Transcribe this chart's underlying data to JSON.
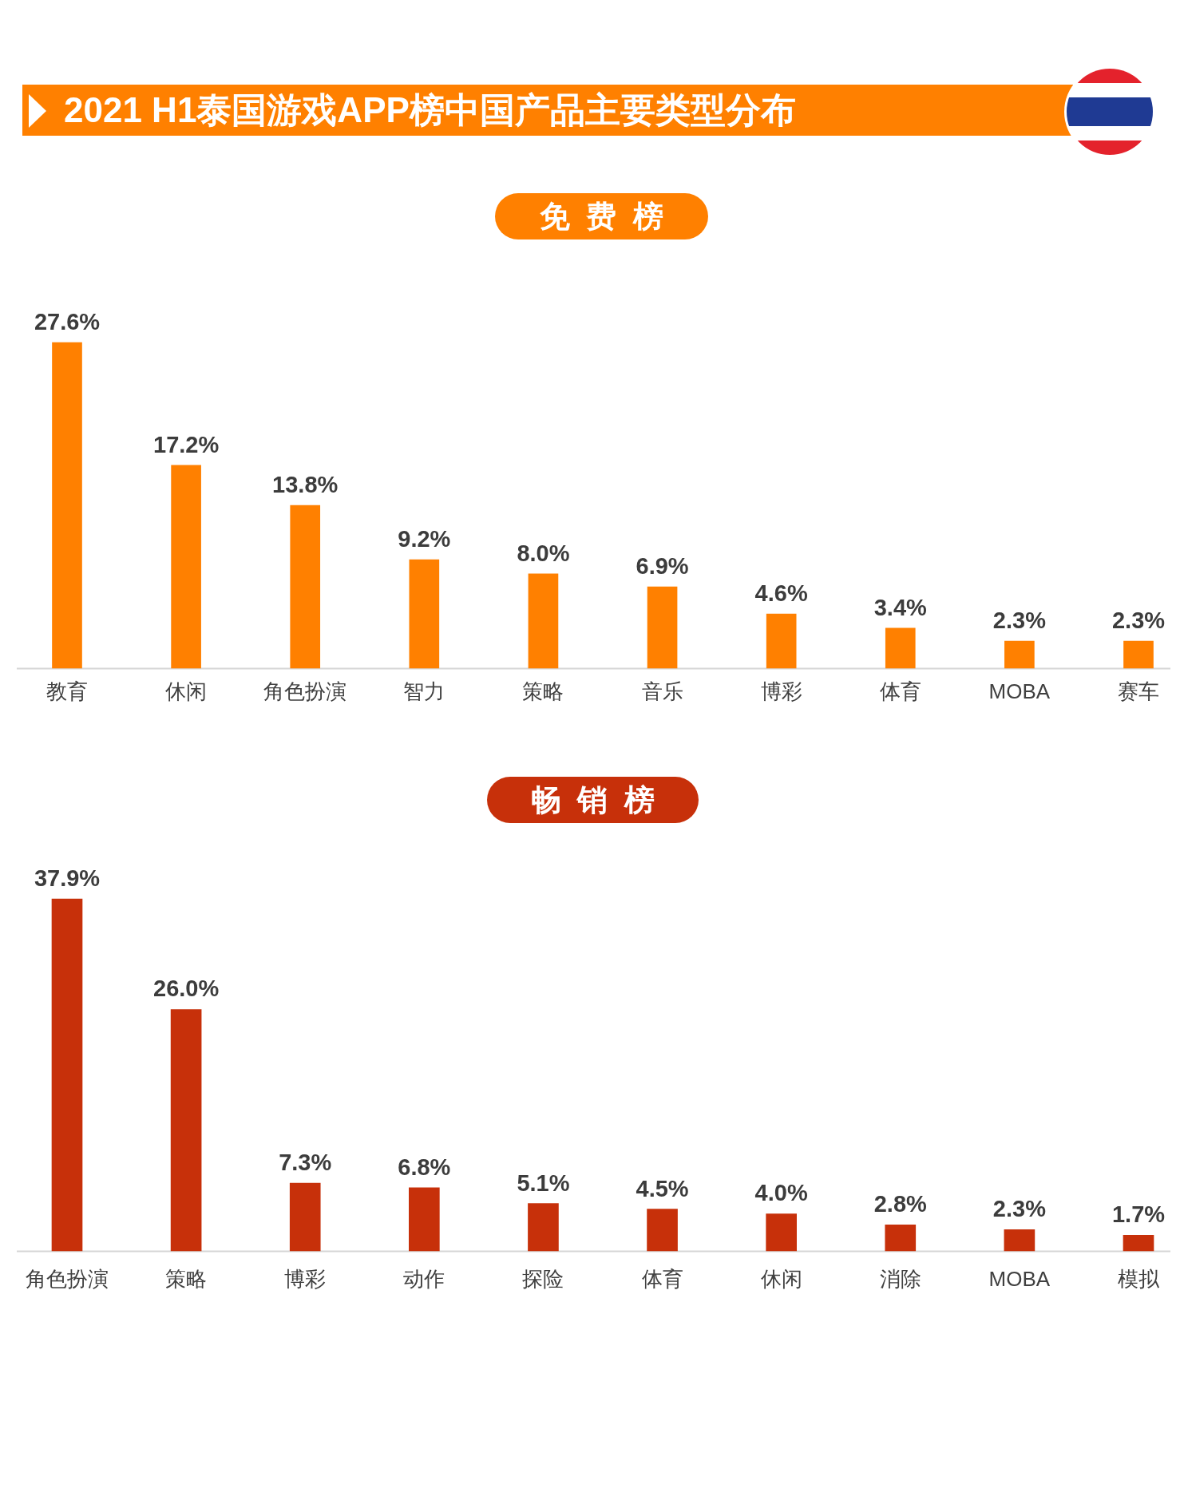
{
  "chart_data": [
    {
      "type": "bar",
      "title": "2021 H1泰国游戏APP榜中国产品主要类型分布",
      "subtitle": "免费榜",
      "categories": [
        "教育",
        "休闲",
        "角色扮演",
        "智力",
        "策略",
        "音乐",
        "博彩",
        "体育",
        "MOBA",
        "赛车"
      ],
      "values": [
        27.6,
        17.2,
        13.8,
        9.2,
        8.0,
        6.9,
        4.6,
        3.4,
        2.3,
        2.3
      ],
      "value_labels": [
        "27.6%",
        "17.2%",
        "13.8%",
        "9.2%",
        "8.0%",
        "6.9%",
        "4.6%",
        "3.4%",
        "2.3%",
        "2.3%"
      ],
      "color": "#ff8000"
    },
    {
      "type": "bar",
      "subtitle": "畅销榜",
      "categories": [
        "角色扮演",
        "策略",
        "博彩",
        "动作",
        "探险",
        "体育",
        "休闲",
        "消除",
        "MOBA",
        "模拟"
      ],
      "values": [
        37.9,
        26.0,
        7.3,
        6.8,
        5.1,
        4.5,
        4.0,
        2.8,
        2.3,
        1.7
      ],
      "value_labels": [
        "37.9%",
        "26.0%",
        "7.3%",
        "6.8%",
        "5.1%",
        "4.5%",
        "4.0%",
        "2.8%",
        "2.3%",
        "1.7%"
      ],
      "color": "#c7300a"
    }
  ]
}
